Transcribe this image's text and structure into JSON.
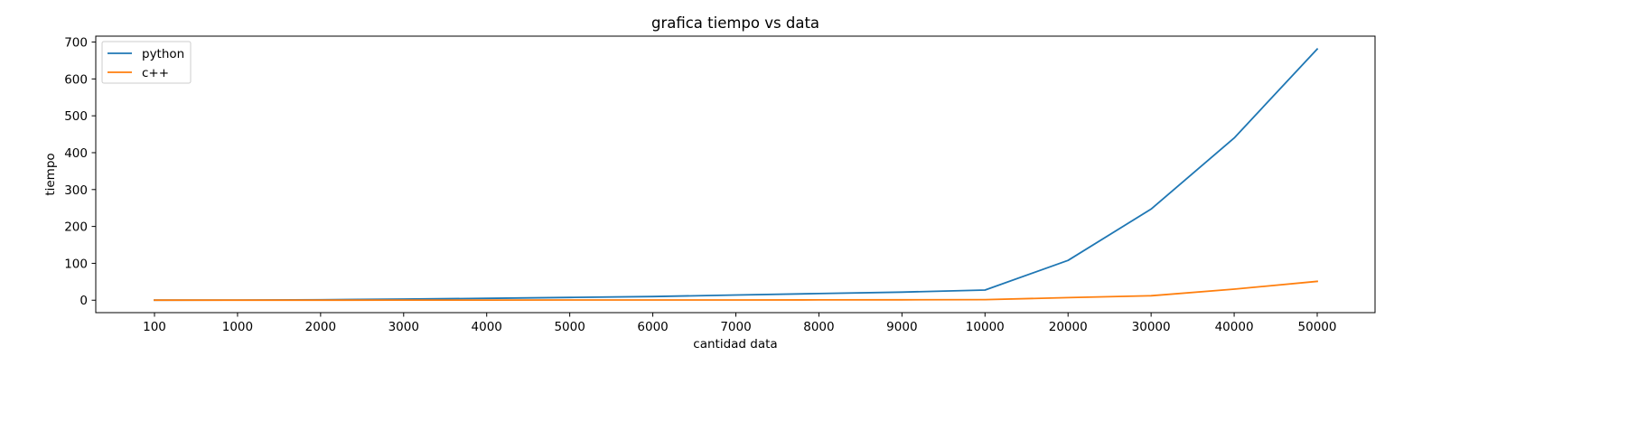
{
  "chart_data": {
    "type": "line",
    "title": "grafica tiempo vs data",
    "xlabel": "cantidad data",
    "ylabel": "tiempo",
    "categories": [
      "100",
      "1000",
      "2000",
      "3000",
      "4000",
      "5000",
      "6000",
      "7000",
      "8000",
      "9000",
      "10000",
      "20000",
      "30000",
      "40000",
      "50000"
    ],
    "yticks": [
      "0",
      "100",
      "200",
      "300",
      "400",
      "500",
      "600",
      "700"
    ],
    "ylim": [
      -33.7,
      716
    ],
    "grid": false,
    "legend_position": "top-left",
    "series": [
      {
        "name": "python",
        "color": "#1f77b4",
        "values": [
          0.1,
          0.4,
          1.2,
          3,
          5,
          7.5,
          10,
          14,
          18,
          22,
          27.5,
          108,
          247,
          440,
          681
        ]
      },
      {
        "name": "c++",
        "color": "#ff7f0e",
        "values": [
          0,
          0.1,
          0.2,
          0.3,
          0.4,
          0.5,
          0.6,
          0.7,
          0.9,
          1,
          1.5,
          7,
          12,
          30,
          51
        ]
      }
    ]
  }
}
